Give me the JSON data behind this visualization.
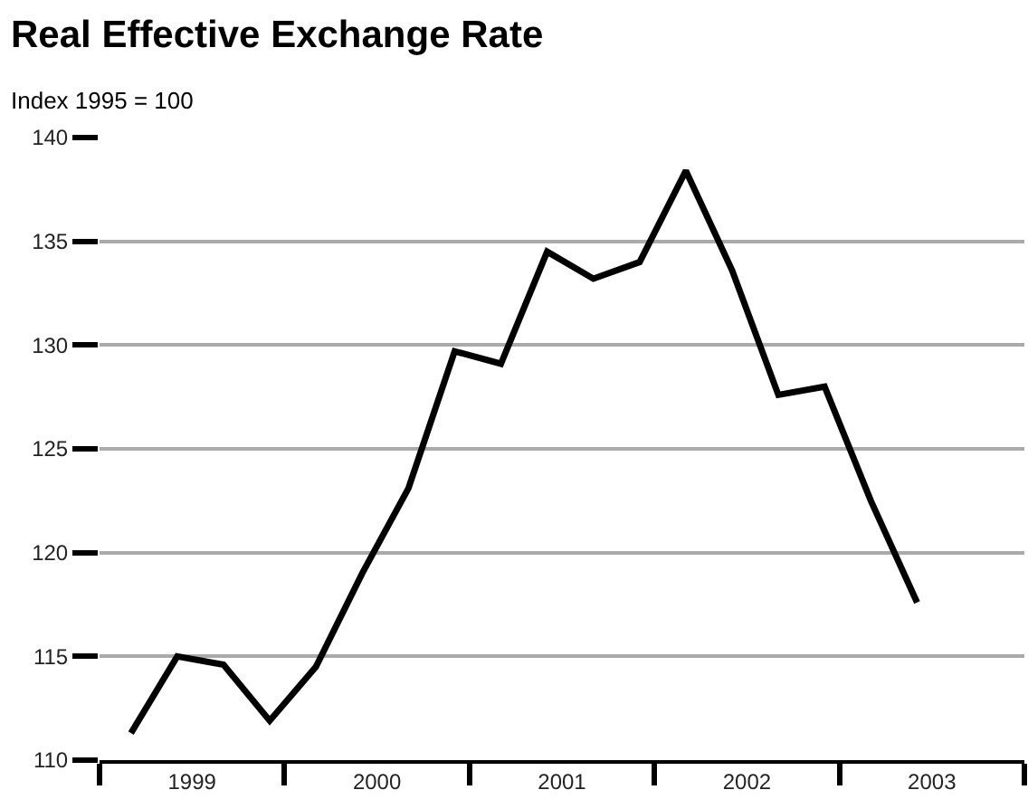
{
  "chart_data": {
    "type": "line",
    "title": "Real Effective Exchange Rate",
    "subtitle": "Index 1995 = 100",
    "x": [
      1999.17,
      1999.42,
      1999.67,
      1999.92,
      2000.17,
      2000.42,
      2000.67,
      2000.92,
      2001.17,
      2001.42,
      2001.67,
      2001.92,
      2002.17,
      2002.42,
      2002.67,
      2002.92,
      2003.17,
      2003.42
    ],
    "series": [
      {
        "color": "#000000",
        "values": [
          111.3,
          115.0,
          114.6,
          111.9,
          114.5,
          119.0,
          123.1,
          129.7,
          129.1,
          134.5,
          133.2,
          134.0,
          138.4,
          133.6,
          127.6,
          128.0,
          122.5,
          117.6
        ]
      }
    ],
    "xlim": [
      1999,
      2004
    ],
    "xticks": [
      {
        "value": 1999,
        "label": null
      },
      {
        "value": 1999.5,
        "label": "1999"
      },
      {
        "value": 2000,
        "label": null
      },
      {
        "value": 2000.5,
        "label": "2000"
      },
      {
        "value": 2001,
        "label": null
      },
      {
        "value": 2001.5,
        "label": "2001"
      },
      {
        "value": 2002,
        "label": null
      },
      {
        "value": 2002.5,
        "label": "2002"
      },
      {
        "value": 2003,
        "label": null
      },
      {
        "value": 2003.5,
        "label": "2003"
      },
      {
        "value": 2004,
        "label": null
      }
    ],
    "ylim": [
      110,
      140
    ],
    "yticks": [
      110,
      115,
      120,
      125,
      130,
      135,
      140
    ],
    "grid": "y",
    "marker": "none",
    "line_style": "solid"
  }
}
